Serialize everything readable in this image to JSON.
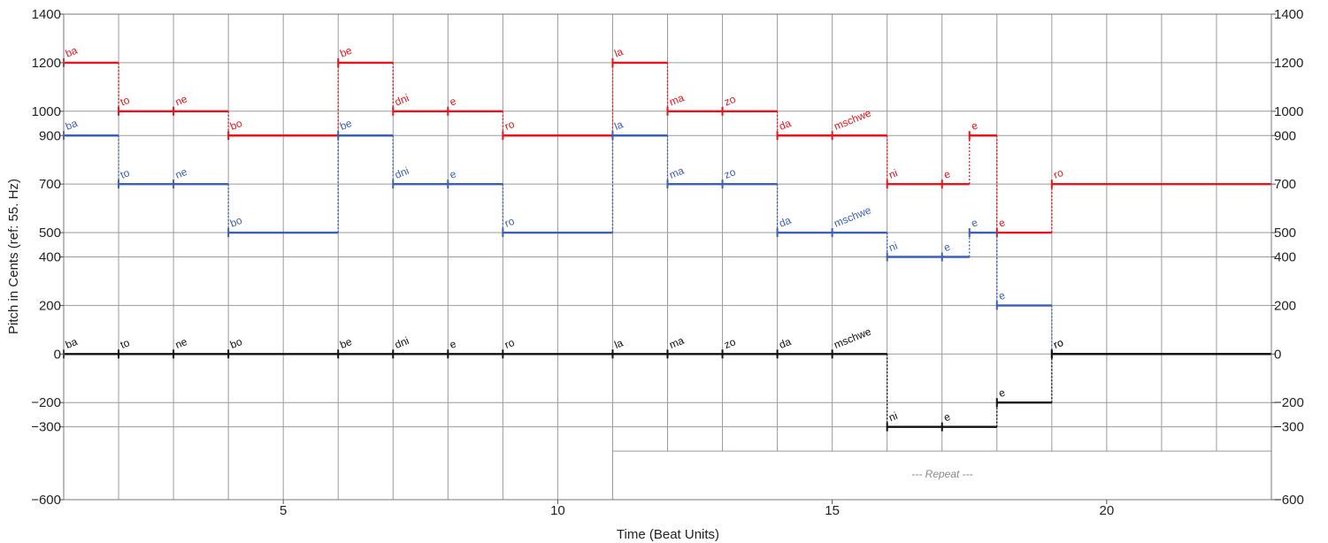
{
  "chart_data": {
    "type": "line",
    "title": "",
    "xlabel": "Time (Beat Units)",
    "ylabel": "Pitch in Cents (ref: 55. Hz)",
    "xlim": [
      1,
      23
    ],
    "ylim": [
      -600,
      1400
    ],
    "x_ticks": [
      5,
      10,
      15,
      20
    ],
    "y_ticks": [
      -600,
      -300,
      -200,
      0,
      200,
      400,
      500,
      700,
      900,
      1000,
      1200,
      1400
    ],
    "x_tick_labels": [
      "5",
      "10",
      "15",
      "20"
    ],
    "y_tick_labels": [
      "−600",
      "−300",
      "−200",
      "0",
      "200",
      "400",
      "500",
      "700",
      "900",
      "1000",
      "1200",
      "1400"
    ],
    "grid": true,
    "vertical_gridlines": [
      2,
      3,
      4,
      6,
      7,
      8,
      9,
      11,
      12,
      13,
      14,
      15,
      16,
      17,
      18,
      19,
      20,
      21,
      22
    ],
    "colors": {
      "red": "#e8141c",
      "blue": "#3b5fb8",
      "black": "#111111",
      "grid": "#9a9a9a",
      "repeat": "#8a8a8a"
    },
    "series": [
      {
        "color": "red",
        "notes": [
          {
            "syllable": "ba",
            "start": 1,
            "end": 2,
            "cents": 1200
          },
          {
            "syllable": "to",
            "start": 2,
            "end": 3,
            "cents": 1000
          },
          {
            "syllable": "ne",
            "start": 3,
            "end": 4,
            "cents": 1000
          },
          {
            "syllable": "bo",
            "start": 4,
            "end": 6,
            "cents": 900
          },
          {
            "syllable": "be",
            "start": 6,
            "end": 7,
            "cents": 1200
          },
          {
            "syllable": "dni",
            "start": 7,
            "end": 8,
            "cents": 1000
          },
          {
            "syllable": "e",
            "start": 8,
            "end": 9,
            "cents": 1000
          },
          {
            "syllable": "ro",
            "start": 9,
            "end": 11,
            "cents": 900
          },
          {
            "syllable": "la",
            "start": 11,
            "end": 12,
            "cents": 1200
          },
          {
            "syllable": "ma",
            "start": 12,
            "end": 13,
            "cents": 1000
          },
          {
            "syllable": "zo",
            "start": 13,
            "end": 14,
            "cents": 1000
          },
          {
            "syllable": "da",
            "start": 14,
            "end": 15,
            "cents": 900
          },
          {
            "syllable": "mschwe",
            "start": 15,
            "end": 16,
            "cents": 900
          },
          {
            "syllable": "ni",
            "start": 16,
            "end": 17,
            "cents": 700
          },
          {
            "syllable": "e",
            "start": 17,
            "end": 17.5,
            "cents": 700
          },
          {
            "syllable": "e",
            "start": 17.5,
            "end": 18,
            "cents": 900
          },
          {
            "syllable": "e",
            "start": 18,
            "end": 19,
            "cents": 500
          },
          {
            "syllable": "ro",
            "start": 19,
            "end": 23,
            "cents": 700
          }
        ]
      },
      {
        "color": "blue",
        "notes": [
          {
            "syllable": "ba",
            "start": 1,
            "end": 2,
            "cents": 900
          },
          {
            "syllable": "to",
            "start": 2,
            "end": 3,
            "cents": 700
          },
          {
            "syllable": "ne",
            "start": 3,
            "end": 4,
            "cents": 700
          },
          {
            "syllable": "bo",
            "start": 4,
            "end": 6,
            "cents": 500
          },
          {
            "syllable": "be",
            "start": 6,
            "end": 7,
            "cents": 900
          },
          {
            "syllable": "dni",
            "start": 7,
            "end": 8,
            "cents": 700
          },
          {
            "syllable": "e",
            "start": 8,
            "end": 9,
            "cents": 700
          },
          {
            "syllable": "ro",
            "start": 9,
            "end": 11,
            "cents": 500
          },
          {
            "syllable": "la",
            "start": 11,
            "end": 12,
            "cents": 900
          },
          {
            "syllable": "ma",
            "start": 12,
            "end": 13,
            "cents": 700
          },
          {
            "syllable": "zo",
            "start": 13,
            "end": 14,
            "cents": 700
          },
          {
            "syllable": "da",
            "start": 14,
            "end": 15,
            "cents": 500
          },
          {
            "syllable": "mschwe",
            "start": 15,
            "end": 16,
            "cents": 500
          },
          {
            "syllable": "ni",
            "start": 16,
            "end": 17,
            "cents": 400
          },
          {
            "syllable": "e",
            "start": 17,
            "end": 17.5,
            "cents": 400
          },
          {
            "syllable": "e",
            "start": 17.5,
            "end": 18,
            "cents": 500
          },
          {
            "syllable": "e",
            "start": 18,
            "end": 19,
            "cents": 200
          },
          {
            "syllable": "ro",
            "start": 19,
            "end": 23,
            "cents": 0
          }
        ]
      },
      {
        "color": "black",
        "notes": [
          {
            "syllable": "ba",
            "start": 1,
            "end": 2,
            "cents": 0
          },
          {
            "syllable": "to",
            "start": 2,
            "end": 3,
            "cents": 0
          },
          {
            "syllable": "ne",
            "start": 3,
            "end": 4,
            "cents": 0
          },
          {
            "syllable": "bo",
            "start": 4,
            "end": 6,
            "cents": 0
          },
          {
            "syllable": "be",
            "start": 6,
            "end": 7,
            "cents": 0
          },
          {
            "syllable": "dni",
            "start": 7,
            "end": 8,
            "cents": 0
          },
          {
            "syllable": "e",
            "start": 8,
            "end": 9,
            "cents": 0
          },
          {
            "syllable": "ro",
            "start": 9,
            "end": 11,
            "cents": 0
          },
          {
            "syllable": "la",
            "start": 11,
            "end": 12,
            "cents": 0
          },
          {
            "syllable": "ma",
            "start": 12,
            "end": 13,
            "cents": 0
          },
          {
            "syllable": "zo",
            "start": 13,
            "end": 14,
            "cents": 0
          },
          {
            "syllable": "da",
            "start": 14,
            "end": 15,
            "cents": 0
          },
          {
            "syllable": "mschwe",
            "start": 15,
            "end": 16,
            "cents": 0
          },
          {
            "syllable": "ni",
            "start": 16,
            "end": 17,
            "cents": -300
          },
          {
            "syllable": "e",
            "start": 17,
            "end": 18,
            "cents": -300
          },
          {
            "syllable": "e",
            "start": 18,
            "end": 19,
            "cents": -200
          },
          {
            "syllable": "ro",
            "start": 19,
            "end": 23,
            "cents": 0
          }
        ]
      }
    ],
    "repeat_region": {
      "label": "--- Repeat ---",
      "x_start": 11,
      "x_end": 23,
      "y_top": -400,
      "y_bottom": -600
    }
  }
}
